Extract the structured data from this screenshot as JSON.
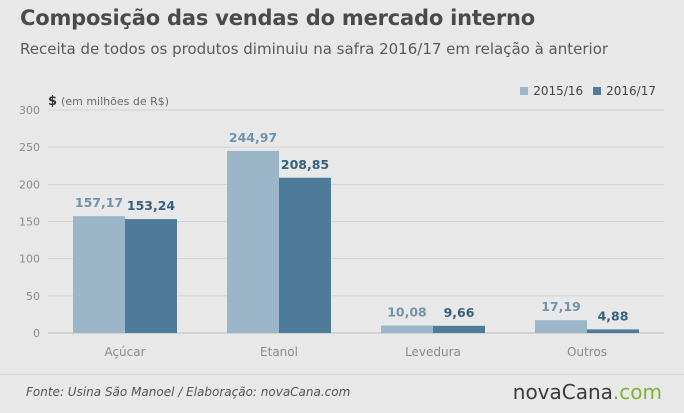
{
  "header": {
    "title": "Composição das vendas do mercado interno",
    "subtitle": "Receita de todos os produtos diminuiu na safra 2016/17 em relação à anterior"
  },
  "unit": {
    "symbol": "$",
    "text": "(em milhões de R$)"
  },
  "colors": {
    "series1": "#9bb6c9",
    "series2": "#4f7b9b",
    "label1": "#6f93ad",
    "label2": "#33607f",
    "axis_text": "#8a8a8a",
    "gridline": "#d2d2d2"
  },
  "chart_data": {
    "type": "bar",
    "categories": [
      "Açúcar",
      "Etanol",
      "Levedura",
      "Outros"
    ],
    "series": [
      {
        "name": "2015/16",
        "values": [
          157.17,
          244.97,
          10.08,
          17.19
        ],
        "labels": [
          "157,17",
          "244,97",
          "10,08",
          "17,19"
        ]
      },
      {
        "name": "2016/17",
        "values": [
          153.24,
          208.85,
          9.66,
          4.88
        ],
        "labels": [
          "153,24",
          "208,85",
          "9,66",
          "4,88"
        ]
      }
    ],
    "ylim": [
      0,
      300
    ],
    "yticks": [
      0,
      50,
      100,
      150,
      200,
      250,
      300
    ],
    "grid": true,
    "legend": "top-right"
  },
  "footer": {
    "source": "Fonte: Usina São Manoel / Elaboração: novaCana.com",
    "brand_main": "novaCana",
    "brand_suffix": ".com"
  }
}
